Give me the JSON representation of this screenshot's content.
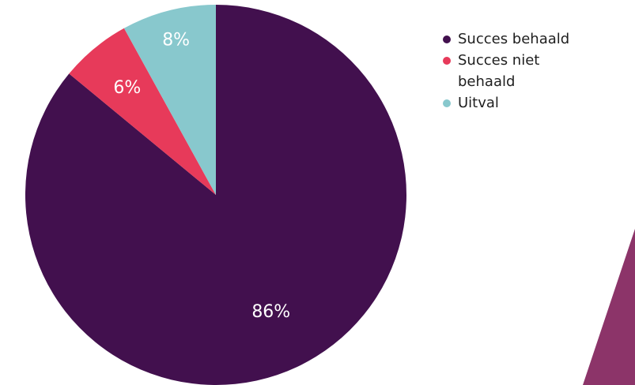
{
  "chart_data": {
    "type": "pie",
    "slices": [
      {
        "label": "Succes behaald",
        "value": 86,
        "display": "86%",
        "color": "#42104e"
      },
      {
        "label": "Succes niet behaald",
        "value": 6,
        "display": "6%",
        "color": "#e73a5a"
      },
      {
        "label": "Uitval",
        "value": 8,
        "display": "8%",
        "color": "#88c8cd"
      }
    ],
    "legend_position": "top-right",
    "decoration_color": "#8c3469"
  }
}
